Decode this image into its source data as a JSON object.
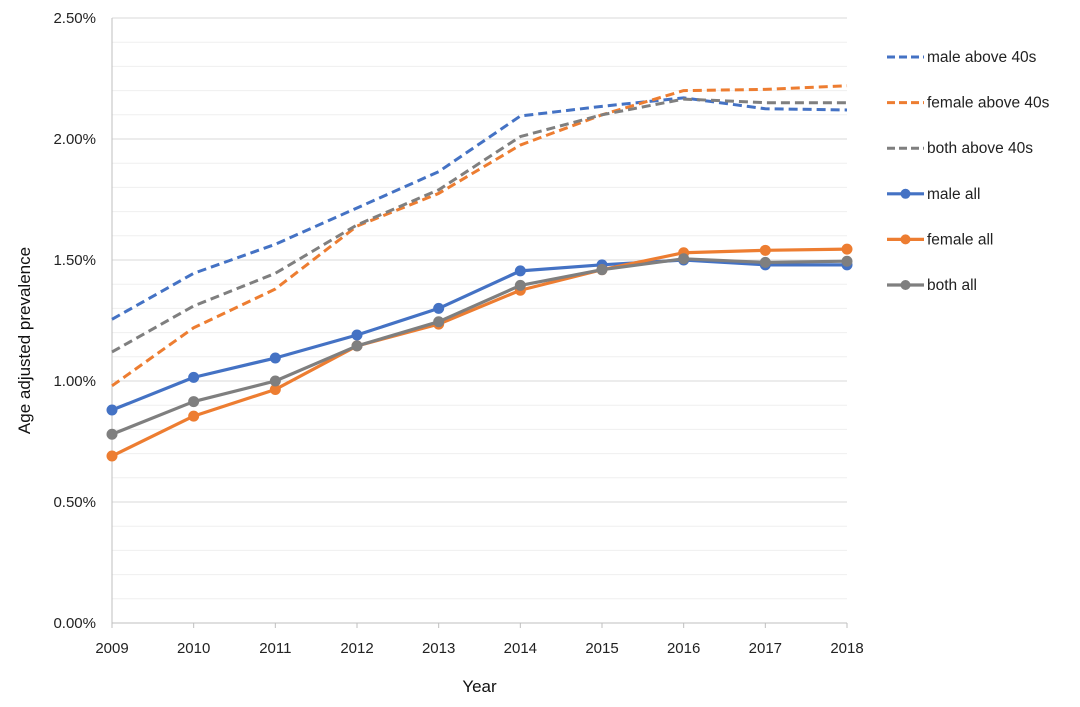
{
  "chart_data": {
    "type": "line",
    "title": "",
    "xlabel": "Year",
    "ylabel": "Age  adjusted prevalence",
    "ylim": [
      0,
      0.025
    ],
    "yticks": [
      0,
      0.005,
      0.01,
      0.015,
      0.02,
      0.025
    ],
    "ytick_labels": [
      "0.00%",
      "0.50%",
      "1.00%",
      "1.50%",
      "2.00%",
      "2.50%"
    ],
    "grid": true,
    "legend_position": "right",
    "categories": [
      "2009",
      "2010",
      "2011",
      "2012",
      "2013",
      "2014",
      "2015",
      "2016",
      "2017",
      "2018"
    ],
    "series": [
      {
        "name": "male above 40s",
        "color": "#4472C4",
        "style": "dashed",
        "markers": false,
        "values": [
          0.01255,
          0.01445,
          0.01565,
          0.01715,
          0.01865,
          0.02095,
          0.02135,
          0.0217,
          0.02125,
          0.0212
        ]
      },
      {
        "name": "female above 40s",
        "color": "#ED7D31",
        "style": "dashed",
        "markers": false,
        "values": [
          0.0098,
          0.0122,
          0.0138,
          0.0164,
          0.01775,
          0.01975,
          0.021,
          0.022,
          0.02205,
          0.0222
        ]
      },
      {
        "name": "both above 40s",
        "color": "#7F7F7F",
        "style": "dashed",
        "markers": false,
        "values": [
          0.0112,
          0.0131,
          0.01445,
          0.01645,
          0.0179,
          0.0201,
          0.021,
          0.02165,
          0.0215,
          0.0215
        ]
      },
      {
        "name": "male all",
        "color": "#4472C4",
        "style": "solid",
        "markers": true,
        "values": [
          0.0088,
          0.01015,
          0.01095,
          0.0119,
          0.013,
          0.01455,
          0.0148,
          0.015,
          0.0148,
          0.0148
        ]
      },
      {
        "name": "female all",
        "color": "#ED7D31",
        "style": "solid",
        "markers": true,
        "values": [
          0.0069,
          0.00855,
          0.00965,
          0.01145,
          0.01235,
          0.01375,
          0.0146,
          0.0153,
          0.0154,
          0.01545
        ]
      },
      {
        "name": "both all",
        "color": "#7F7F7F",
        "style": "solid",
        "markers": true,
        "values": [
          0.0078,
          0.00915,
          0.01,
          0.01145,
          0.01245,
          0.01395,
          0.0146,
          0.01505,
          0.0149,
          0.01495
        ]
      }
    ]
  }
}
